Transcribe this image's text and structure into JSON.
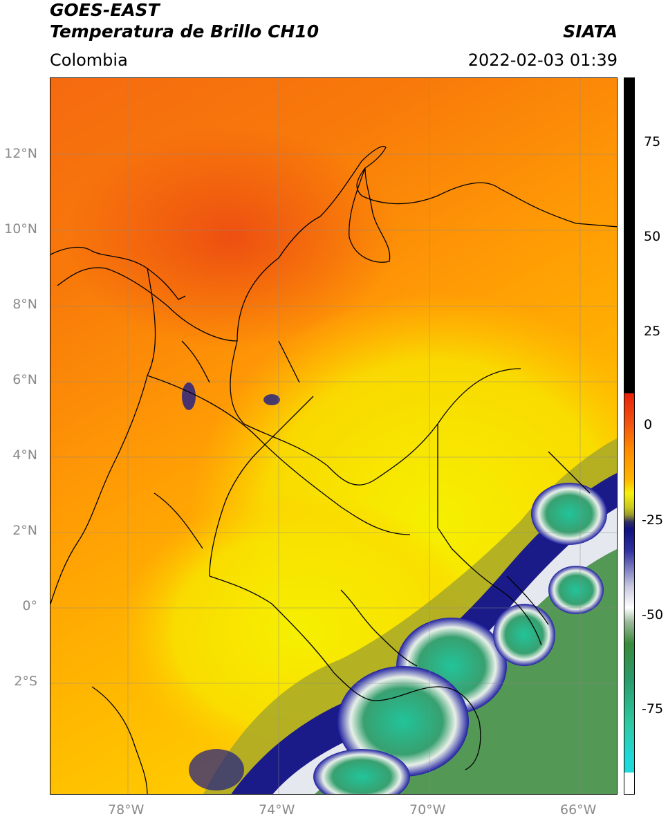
{
  "header": {
    "line1": "GOES-EAST",
    "line2": "Temperatura de Brillo CH10",
    "region": "Colombia",
    "agency": "SIATA",
    "datetime": "2022-02-03 01:39"
  },
  "axes": {
    "lat_labels": [
      "12°N",
      "10°N",
      "8°N",
      "6°N",
      "4°N",
      "2°N",
      "0°",
      "2°S"
    ],
    "lon_labels": [
      "78°W",
      "74°W",
      "70°W",
      "66°W"
    ]
  },
  "colorbar": {
    "ticks": [
      "75",
      "50",
      "25",
      "0",
      "-25",
      "-50",
      "-75"
    ],
    "colors": {
      "black": "#000000",
      "red": "#e8200a",
      "orange": "#ff8c00",
      "yellow": "#f7f00a",
      "olive": "#9a9a2a",
      "navy": "#101080",
      "white": "#ffffff",
      "green": "#3a8a3a",
      "teal": "#2ec8a0",
      "cyan": "#20d8d8"
    }
  }
}
